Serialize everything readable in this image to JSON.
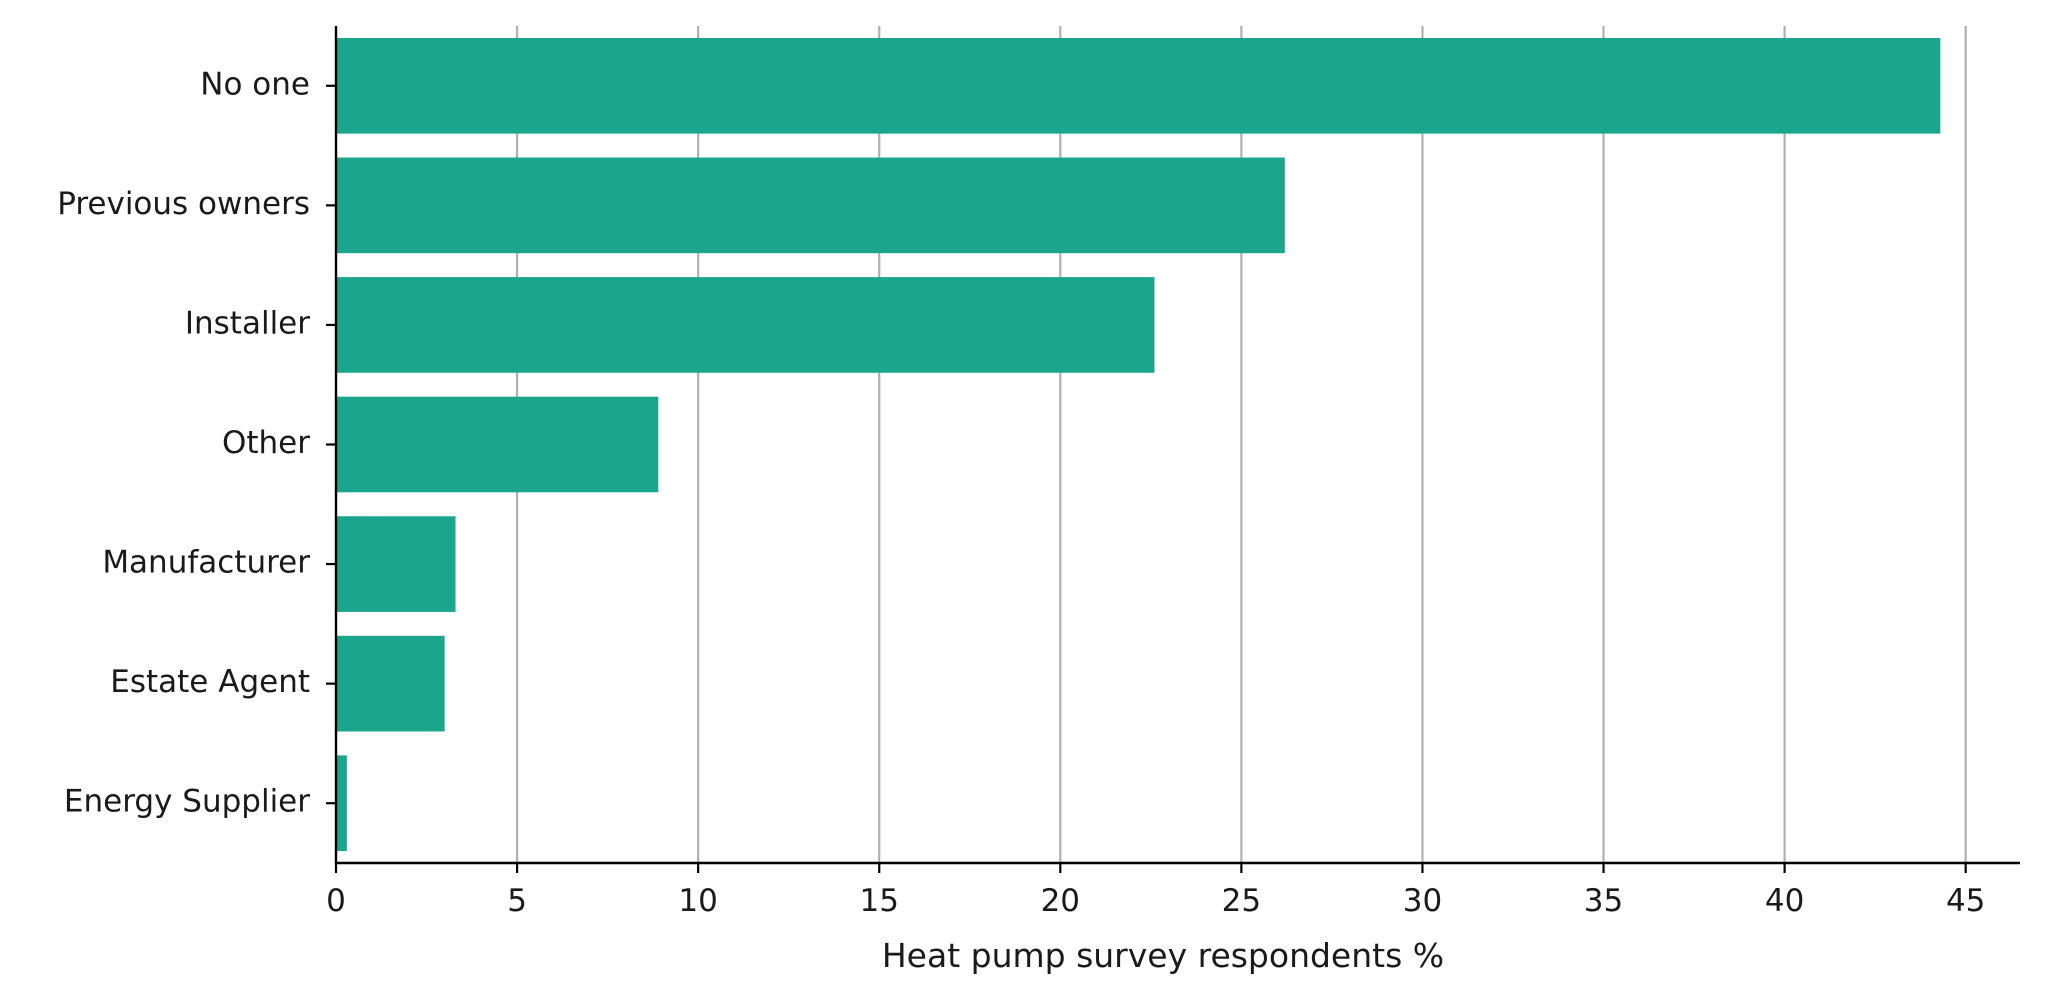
{
  "chart_data": {
    "type": "bar",
    "orientation": "horizontal",
    "categories": [
      "No one",
      "Previous owners",
      "Installer",
      "Other",
      "Manufacturer",
      "Estate Agent",
      "Energy Supplier"
    ],
    "values": [
      44.3,
      26.2,
      22.6,
      8.9,
      3.3,
      3.0,
      0.3
    ],
    "title": "",
    "xlabel": "Heat pump survey respondents %",
    "ylabel": "",
    "xlim": [
      0,
      46.5
    ],
    "xticks": [
      0,
      5,
      10,
      15,
      20,
      25,
      30,
      35,
      40,
      45
    ],
    "xtick_labels": [
      "0",
      "5",
      "10",
      "15",
      "20",
      "25",
      "30",
      "35",
      "40",
      "45"
    ],
    "grid": "vertical",
    "legend": "none",
    "colors": {
      "bar": "#1ba58d",
      "grid": "#b0b0b0",
      "axis": "#000000"
    }
  }
}
